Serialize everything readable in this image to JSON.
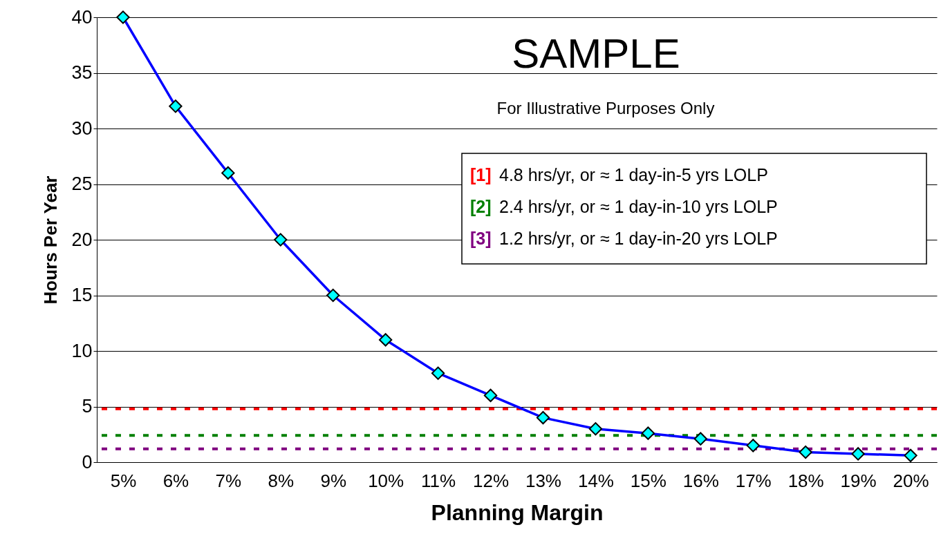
{
  "chart_data": {
    "type": "line",
    "xlabel": "Planning Margin",
    "ylabel": "Hours Per Year",
    "annotations": [
      "SAMPLE",
      "For Illustrative Purposes Only"
    ],
    "categories": [
      "5%",
      "6%",
      "7%",
      "8%",
      "9%",
      "10%",
      "11%",
      "12%",
      "13%",
      "14%",
      "15%",
      "16%",
      "17%",
      "18%",
      "19%",
      "20%"
    ],
    "series": [
      {
        "color": "#0000ff",
        "values": [
          40,
          32,
          26,
          20,
          15,
          11,
          8,
          6,
          4,
          3,
          2.6,
          2.1,
          1.5,
          0.9,
          0.75,
          0.6
        ]
      }
    ],
    "ylim": [
      0,
      40
    ],
    "yticks": [
      0,
      5,
      10,
      15,
      20,
      25,
      30,
      35,
      40
    ],
    "grid": "y",
    "marker": "diamond",
    "line_style": "solid",
    "ref_lines": [
      {
        "axis": "y",
        "value": 4.8,
        "label": "[1] 4.8 hrs/yr, or ≈ 1 day-in-5 yrs LOLP",
        "color": "#ff0000",
        "line_style": "dashed"
      },
      {
        "axis": "y",
        "value": 2.4,
        "label": "[2] 2.4 hrs/yr, or ≈ 1 day-in-10 yrs LOLP",
        "color": "#008000",
        "line_style": "dashed"
      },
      {
        "axis": "y",
        "value": 1.2,
        "label": "[3] 1.2 hrs/yr, or ≈ 1 day-in-20 yrs LOLP",
        "color": "#800080",
        "line_style": "dashed"
      }
    ],
    "legend": "right"
  }
}
